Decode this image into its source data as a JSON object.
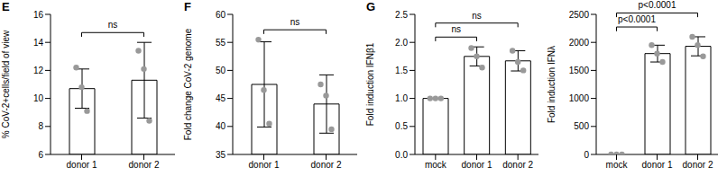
{
  "chart_data": [
    {
      "type": "bar",
      "panel_label": "E",
      "y_label": "% CoV-2+cells/field of view",
      "categories": [
        "donor 1",
        "donor 2"
      ],
      "values": [
        10.7,
        11.3
      ],
      "errors": [
        1.4,
        2.7
      ],
      "points": [
        [
          12.2,
          10.8,
          9.1
        ],
        [
          13.4,
          12.1,
          8.4
        ]
      ],
      "color": "#ffffff",
      "ylim": [
        6,
        16
      ],
      "yticks": [
        6,
        8,
        10,
        12,
        14,
        16
      ],
      "annotations": [
        {
          "from": "donor 1",
          "to": "donor 2",
          "label": "ns"
        }
      ]
    },
    {
      "type": "bar",
      "panel_label": "F",
      "y_label": "Fold change CoV-2 genome",
      "categories": [
        "donor 1",
        "donor 2"
      ],
      "values": [
        47.5,
        44
      ],
      "errors": [
        7.6,
        5.2
      ],
      "points": [
        [
          55.5,
          46.5,
          40.5
        ],
        [
          47.5,
          45.5,
          39.5
        ]
      ],
      "color": "#ffffff",
      "ylim": [
        35,
        60
      ],
      "yticks": [
        35,
        40,
        45,
        50,
        55,
        60
      ],
      "annotations": [
        {
          "from": "donor 1",
          "to": "donor 2",
          "label": "ns"
        }
      ]
    },
    {
      "type": "bar",
      "panel_label": "G",
      "y_label": "Fold induction IFNβ1",
      "categories": [
        "mock",
        "donor 1",
        "donor 2"
      ],
      "values": [
        1.0,
        1.75,
        1.67
      ],
      "errors": [
        0,
        0.17,
        0.18
      ],
      "points": [
        [
          1.0,
          1.0,
          1.0
        ],
        [
          1.9,
          1.75,
          1.55
        ],
        [
          1.85,
          1.65,
          1.5
        ]
      ],
      "color": "#ffffff",
      "ylim": [
        0,
        2.5
      ],
      "yticks": [
        {
          "value": 0,
          "label": "0.0"
        },
        {
          "value": 0.5,
          "label": "0.5"
        },
        {
          "value": 1,
          "label": "1.0"
        },
        {
          "value": 1.5,
          "label": "1.5"
        },
        {
          "value": 2,
          "label": "2.0"
        },
        {
          "value": 2.5,
          "label": "2.5"
        }
      ],
      "annotations": [
        {
          "from": "mock",
          "to": "donor 1",
          "label": "ns"
        },
        {
          "from": "mock",
          "to": "donor 2",
          "label": "ns"
        }
      ]
    },
    {
      "type": "bar",
      "y_label": "Fold induction IFNλ",
      "categories": [
        "mock",
        "donor 1",
        "donor 2"
      ],
      "values": [
        0,
        1800,
        1930
      ],
      "errors": [
        0,
        150,
        170
      ],
      "points": [
        [
          0,
          0,
          0
        ],
        [
          1950,
          1800,
          1650
        ],
        [
          2100,
          1950,
          1750
        ]
      ],
      "color": "#ffffff",
      "ylim": [
        0,
        2500
      ],
      "yticks": [
        0,
        500,
        1000,
        1500,
        2000,
        2500
      ],
      "annotations": [
        {
          "from": "mock",
          "to": "donor 1",
          "label": "p<0.0001"
        },
        {
          "from": "mock",
          "to": "donor 2",
          "label": "p<0.0001"
        }
      ]
    }
  ]
}
